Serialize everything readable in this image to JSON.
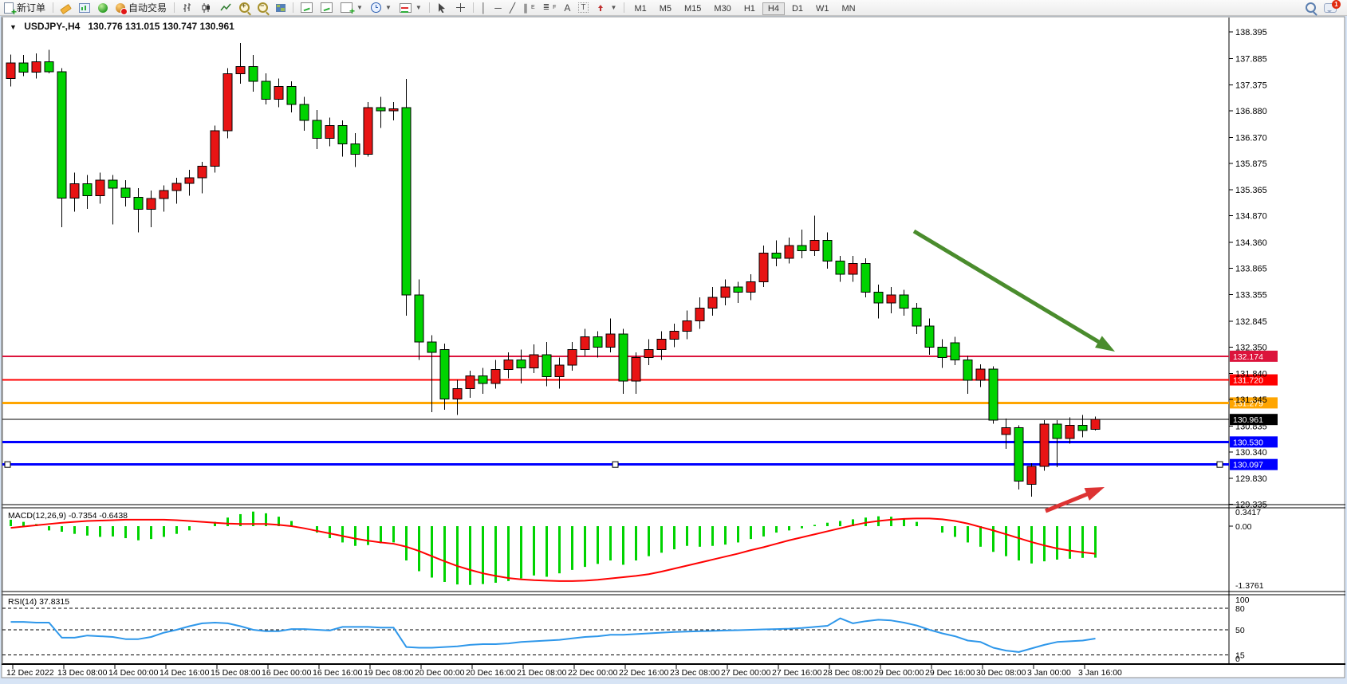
{
  "toolbar": {
    "new_order": "新订单",
    "autotrade": "自动交易",
    "timeframes": [
      "M1",
      "M5",
      "M15",
      "M30",
      "H1",
      "H4",
      "D1",
      "W1",
      "MN"
    ],
    "active_timeframe": "H4",
    "chat_badge": "1",
    "tools": {
      "channel_letter": "E",
      "fibo_letter": "F",
      "text_tool": "A",
      "label_tool": "T"
    }
  },
  "chart_data": [
    {
      "type": "candlestick",
      "symbol": "USDJPY-,H4",
      "ohlc": "130.776 131.015 130.747 130.961",
      "price_top": 138.395,
      "price_bottom": 129.335,
      "colors": {
        "bull": "#e81414",
        "bear": "#00d300",
        "outline": "#000000"
      },
      "y_axis_ticks": [
        "138.395",
        "137.885",
        "137.375",
        "136.880",
        "136.370",
        "135.875",
        "135.365",
        "134.870",
        "134.360",
        "133.865",
        "133.355",
        "132.845",
        "132.350",
        "131.840",
        "131.345",
        "130.835",
        "130.340",
        "129.830",
        "129.335"
      ],
      "x_axis_ticks": [
        "12 Dec 2022",
        "13 Dec 08:00",
        "14 Dec 00:00",
        "14 Dec 16:00",
        "15 Dec 08:00",
        "16 Dec 00:00",
        "16 Dec 16:00",
        "19 Dec 08:00",
        "20 Dec 00:00",
        "20 Dec 16:00",
        "21 Dec 08:00",
        "22 Dec 00:00",
        "22 Dec 16:00",
        "23 Dec 08:00",
        "27 Dec 00:00",
        "27 Dec 16:00",
        "28 Dec 08:00",
        "29 Dec 00:00",
        "29 Dec 16:00",
        "30 Dec 08:00",
        "3 Jan 00:00",
        "3 Jan 16:00"
      ],
      "levels": [
        {
          "price": 132.174,
          "label": "132.174",
          "color": "#dc143c",
          "width": 2,
          "selected": false
        },
        {
          "price": 131.72,
          "label": "131.720",
          "color": "#ff0000",
          "width": 2,
          "selected": false
        },
        {
          "price": 131.279,
          "label": "131.279",
          "color": "#ffa500",
          "width": 3,
          "selected": false
        },
        {
          "price": 130.961,
          "label": "130.961",
          "color": "#000000",
          "width": 1,
          "selected": false
        },
        {
          "price": 130.53,
          "label": "130.530",
          "color": "#0000ff",
          "width": 3,
          "selected": false
        },
        {
          "price": 130.097,
          "label": "130.097",
          "color": "#0000ff",
          "width": 3,
          "selected": true
        }
      ],
      "annotations": [
        {
          "type": "arrow",
          "name": "downtrend-arrow",
          "color": "#4a8c2d",
          "width": 5,
          "from": [
            1146,
            290
          ],
          "to": [
            1398,
            441
          ]
        },
        {
          "type": "arrow",
          "name": "bounce-arrow",
          "color": "#dd3333",
          "width": 5,
          "from": [
            1311,
            641
          ],
          "to": [
            1385,
            611
          ]
        }
      ],
      "candles": [
        [
          137.5,
          137.96,
          137.35,
          137.8
        ],
        [
          137.8,
          137.95,
          137.55,
          137.62
        ],
        [
          137.62,
          137.98,
          137.5,
          137.82
        ],
        [
          137.82,
          138.05,
          137.6,
          137.63
        ],
        [
          137.63,
          137.7,
          134.65,
          135.21
        ],
        [
          135.21,
          135.7,
          134.95,
          135.48
        ],
        [
          135.48,
          135.65,
          135.0,
          135.25
        ],
        [
          135.25,
          135.7,
          135.1,
          135.55
        ],
        [
          135.55,
          135.65,
          134.7,
          135.4
        ],
        [
          135.4,
          135.55,
          135.05,
          135.22
        ],
        [
          135.22,
          135.4,
          134.55,
          134.99
        ],
        [
          134.99,
          135.35,
          134.65,
          135.2
        ],
        [
          135.2,
          135.45,
          134.95,
          135.35
        ],
        [
          135.35,
          135.6,
          135.1,
          135.49
        ],
        [
          135.49,
          135.75,
          135.25,
          135.6
        ],
        [
          135.6,
          135.9,
          135.3,
          135.82
        ],
        [
          135.82,
          136.6,
          135.7,
          136.5
        ],
        [
          136.5,
          137.7,
          136.35,
          137.59
        ],
        [
          137.59,
          138.18,
          137.4,
          137.73
        ],
        [
          137.73,
          137.95,
          137.25,
          137.45
        ],
        [
          137.45,
          137.6,
          137.0,
          137.1
        ],
        [
          137.1,
          137.5,
          136.95,
          137.35
        ],
        [
          137.35,
          137.45,
          136.85,
          137.0
        ],
        [
          137.0,
          137.15,
          136.5,
          136.7
        ],
        [
          136.7,
          136.9,
          136.15,
          136.35
        ],
        [
          136.35,
          136.75,
          136.2,
          136.6
        ],
        [
          136.6,
          136.7,
          136.0,
          136.25
        ],
        [
          136.25,
          136.45,
          135.8,
          136.05
        ],
        [
          136.05,
          137.05,
          136.0,
          136.94
        ],
        [
          136.94,
          137.15,
          136.55,
          136.88
        ],
        [
          136.88,
          137.05,
          136.7,
          136.92
        ],
        [
          136.94,
          137.49,
          132.95,
          133.35
        ],
        [
          133.35,
          133.65,
          132.1,
          132.45
        ],
        [
          132.45,
          132.58,
          131.1,
          132.25
        ],
        [
          132.3,
          132.42,
          131.15,
          131.35
        ],
        [
          131.35,
          131.72,
          131.05,
          131.55
        ],
        [
          131.55,
          131.9,
          131.38,
          131.8
        ],
        [
          131.8,
          131.95,
          131.45,
          131.65
        ],
        [
          131.65,
          132.1,
          131.55,
          131.92
        ],
        [
          131.92,
          132.25,
          131.75,
          132.1
        ],
        [
          132.1,
          132.3,
          131.65,
          131.95
        ],
        [
          131.95,
          132.4,
          131.85,
          132.2
        ],
        [
          132.2,
          132.45,
          131.6,
          131.78
        ],
        [
          131.78,
          132.15,
          131.55,
          132.0
        ],
        [
          132.0,
          132.45,
          131.9,
          132.3
        ],
        [
          132.3,
          132.7,
          132.18,
          132.55
        ],
        [
          132.55,
          132.65,
          132.15,
          132.35
        ],
        [
          132.35,
          132.9,
          132.25,
          132.6
        ],
        [
          132.6,
          132.7,
          131.45,
          131.7
        ],
        [
          131.7,
          132.25,
          131.45,
          132.15
        ],
        [
          132.15,
          132.5,
          132.0,
          132.3
        ],
        [
          132.3,
          132.65,
          132.1,
          132.5
        ],
        [
          132.5,
          132.8,
          132.35,
          132.65
        ],
        [
          132.65,
          133.05,
          132.5,
          132.85
        ],
        [
          132.85,
          133.3,
          132.7,
          133.1
        ],
        [
          133.1,
          133.5,
          132.95,
          133.3
        ],
        [
          133.3,
          133.65,
          133.15,
          133.5
        ],
        [
          133.5,
          133.6,
          133.2,
          133.4
        ],
        [
          133.4,
          133.75,
          133.25,
          133.6
        ],
        [
          133.6,
          134.3,
          133.5,
          134.15
        ],
        [
          134.15,
          134.4,
          133.9,
          134.05
        ],
        [
          134.05,
          134.45,
          133.95,
          134.3
        ],
        [
          134.3,
          134.6,
          134.05,
          134.2
        ],
        [
          134.2,
          134.87,
          134.1,
          134.4
        ],
        [
          134.4,
          134.55,
          133.85,
          134.0
        ],
        [
          134.0,
          134.1,
          133.6,
          133.75
        ],
        [
          133.75,
          134.1,
          133.6,
          133.95
        ],
        [
          133.95,
          134.05,
          133.3,
          133.4
        ],
        [
          133.4,
          133.55,
          132.9,
          133.2
        ],
        [
          133.2,
          133.5,
          133.0,
          133.35
        ],
        [
          133.35,
          133.45,
          132.95,
          133.1
        ],
        [
          133.1,
          133.2,
          132.6,
          132.75
        ],
        [
          132.75,
          132.9,
          132.2,
          132.35
        ],
        [
          132.35,
          132.5,
          131.95,
          132.15
        ],
        [
          132.43,
          132.55,
          132.0,
          132.1
        ],
        [
          132.1,
          132.18,
          131.45,
          131.71
        ],
        [
          131.71,
          132.02,
          131.58,
          131.93
        ],
        [
          131.93,
          131.98,
          130.88,
          130.95
        ],
        [
          130.67,
          130.98,
          130.4,
          130.8
        ],
        [
          130.8,
          130.85,
          129.62,
          129.78
        ],
        [
          129.72,
          130.12,
          129.48,
          130.06
        ],
        [
          130.06,
          130.95,
          129.98,
          130.87
        ],
        [
          130.87,
          130.95,
          130.05,
          130.6
        ],
        [
          130.6,
          131.0,
          130.5,
          130.85
        ],
        [
          130.85,
          131.05,
          130.62,
          130.75
        ],
        [
          130.776,
          131.015,
          130.747,
          130.961
        ]
      ]
    },
    {
      "type": "bar",
      "label": "MACD(12,26,9)",
      "current_values": "-0.7354 -0.6438",
      "axis_labels": [
        "0.3417",
        "0.00",
        "-1.3761"
      ],
      "colors": {
        "histogram": "#00d300",
        "signal": "#ff0000"
      },
      "histogram": [
        0.15,
        0.1,
        0.05,
        -0.1,
        -0.13,
        -0.18,
        -0.22,
        -0.25,
        -0.24,
        -0.28,
        -0.33,
        -0.3,
        -0.25,
        -0.18,
        -0.1,
        0.0,
        0.1,
        0.2,
        0.28,
        0.34,
        0.3,
        0.22,
        0.12,
        0.0,
        -0.15,
        -0.28,
        -0.38,
        -0.46,
        -0.44,
        -0.4,
        -0.38,
        -0.8,
        -1.05,
        -1.2,
        -1.3,
        -1.36,
        -1.37,
        -1.35,
        -1.32,
        -1.28,
        -1.22,
        -1.15,
        -1.18,
        -1.1,
        -1.02,
        -0.95,
        -0.88,
        -0.8,
        -0.9,
        -0.8,
        -0.7,
        -0.62,
        -0.54,
        -0.46,
        -0.48,
        -0.46,
        -0.43,
        -0.38,
        -0.3,
        -0.24,
        -0.15,
        -0.1,
        -0.05,
        0.03,
        0.08,
        0.12,
        0.16,
        0.2,
        0.23,
        0.22,
        0.18,
        0.1,
        0.0,
        -0.15,
        -0.25,
        -0.38,
        -0.48,
        -0.6,
        -0.7,
        -0.8,
        -0.87,
        -0.82,
        -0.78,
        -0.76,
        -0.74,
        -0.7354
      ],
      "signal": [
        -0.04,
        -0.01,
        0.02,
        0.05,
        0.08,
        0.1,
        0.12,
        0.13,
        0.14,
        0.15,
        0.15,
        0.15,
        0.15,
        0.14,
        0.12,
        0.1,
        0.08,
        0.06,
        0.05,
        0.05,
        0.05,
        0.03,
        0.0,
        -0.05,
        -0.11,
        -0.17,
        -0.23,
        -0.29,
        -0.34,
        -0.38,
        -0.41,
        -0.48,
        -0.58,
        -0.7,
        -0.82,
        -0.93,
        -1.02,
        -1.1,
        -1.16,
        -1.21,
        -1.24,
        -1.26,
        -1.27,
        -1.28,
        -1.28,
        -1.27,
        -1.25,
        -1.22,
        -1.19,
        -1.16,
        -1.12,
        -1.06,
        -0.99,
        -0.92,
        -0.85,
        -0.78,
        -0.71,
        -0.64,
        -0.56,
        -0.49,
        -0.41,
        -0.33,
        -0.26,
        -0.19,
        -0.12,
        -0.05,
        0.02,
        0.08,
        0.12,
        0.15,
        0.17,
        0.18,
        0.18,
        0.16,
        0.12,
        0.06,
        -0.02,
        -0.1,
        -0.19,
        -0.28,
        -0.37,
        -0.45,
        -0.52,
        -0.57,
        -0.61,
        -0.6438
      ]
    },
    {
      "type": "line",
      "label": "RSI(14)",
      "current_value": "37.8315",
      "axis_labels": [
        "100",
        "80",
        "50",
        "15",
        "0"
      ],
      "dashed_levels": [
        80,
        50,
        15
      ],
      "range": [
        0,
        100
      ],
      "color": "#2e97ea",
      "values": [
        61,
        61,
        60,
        60,
        39,
        39,
        42,
        41,
        40,
        37,
        37,
        40,
        46,
        50,
        55,
        59,
        60,
        59,
        55,
        50,
        48,
        48,
        51,
        51,
        50,
        49,
        54,
        54,
        54,
        53,
        53,
        26,
        25,
        25,
        26,
        27,
        29,
        30,
        30,
        31,
        33,
        34,
        35,
        36,
        38,
        40,
        41,
        43,
        43,
        44,
        45,
        46,
        47,
        47.5,
        48,
        48.5,
        49,
        49.5,
        50,
        50.5,
        51,
        51.5,
        52.5,
        54,
        55.5,
        66,
        59,
        62,
        64,
        63,
        60,
        56,
        50,
        45,
        41,
        35,
        33,
        25,
        21,
        19,
        24,
        29,
        33,
        34,
        35,
        37.8
      ]
    }
  ]
}
